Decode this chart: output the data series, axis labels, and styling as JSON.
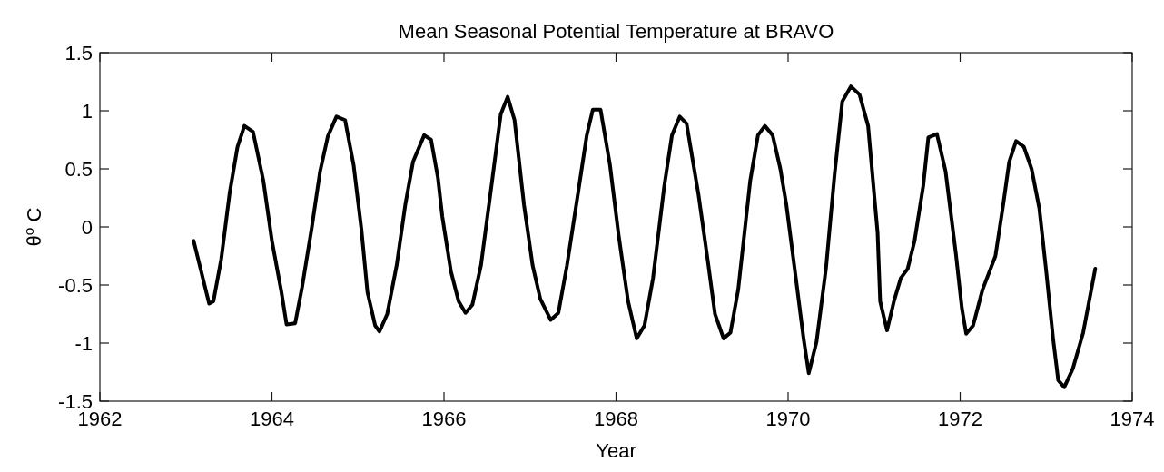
{
  "chart_data": {
    "type": "line",
    "title": "Mean Seasonal Potential Temperature at BRAVO",
    "xlabel": "Year",
    "ylabel": "θ$^{o}$ C",
    "xlim": [
      1962,
      1974
    ],
    "xticks": [
      1962,
      1964,
      1966,
      1968,
      1970,
      1972,
      1974
    ],
    "ylim": [
      -1.5,
      1.5
    ],
    "yticks": [
      -1.5,
      -1,
      -0.5,
      0,
      0.5,
      1,
      1.5
    ],
    "marker": "none",
    "line_style": "solid",
    "series": [
      {
        "color": "#000000",
        "x": [
          1963.09,
          1963.27,
          1963.32,
          1963.41,
          1963.51,
          1963.6,
          1963.68,
          1963.78,
          1963.9,
          1964.0,
          1964.11,
          1964.17,
          1964.27,
          1964.35,
          1964.46,
          1964.56,
          1964.65,
          1964.75,
          1964.85,
          1964.95,
          1965.04,
          1965.11,
          1965.2,
          1965.25,
          1965.34,
          1965.45,
          1965.55,
          1965.64,
          1965.77,
          1965.85,
          1965.93,
          1965.98,
          1966.08,
          1966.17,
          1966.25,
          1966.33,
          1966.43,
          1966.56,
          1966.66,
          1966.74,
          1966.82,
          1966.93,
          1967.03,
          1967.12,
          1967.24,
          1967.33,
          1967.43,
          1967.56,
          1967.66,
          1967.73,
          1967.82,
          1967.93,
          1968.03,
          1968.14,
          1968.24,
          1968.33,
          1968.43,
          1968.56,
          1968.65,
          1968.74,
          1968.82,
          1968.96,
          1969.07,
          1969.15,
          1969.25,
          1969.33,
          1969.42,
          1969.56,
          1969.65,
          1969.73,
          1969.82,
          1969.91,
          1969.98,
          1970.09,
          1970.18,
          1970.24,
          1970.33,
          1970.44,
          1970.54,
          1970.63,
          1970.73,
          1970.83,
          1970.93,
          1971.04,
          1971.07,
          1971.15,
          1971.23,
          1971.31,
          1971.39,
          1971.47,
          1971.57,
          1971.63,
          1971.73,
          1971.83,
          1971.95,
          1972.02,
          1972.07,
          1972.15,
          1972.26,
          1972.41,
          1972.5,
          1972.57,
          1972.65,
          1972.74,
          1972.83,
          1972.92,
          1973.0,
          1973.08,
          1973.14,
          1973.21,
          1973.31,
          1973.43,
          1973.57
        ],
        "values": [
          -0.12,
          -0.66,
          -0.64,
          -0.28,
          0.3,
          0.69,
          0.87,
          0.82,
          0.4,
          -0.12,
          -0.56,
          -0.84,
          -0.83,
          -0.52,
          -0.02,
          0.48,
          0.78,
          0.95,
          0.92,
          0.53,
          -0.02,
          -0.56,
          -0.85,
          -0.9,
          -0.75,
          -0.33,
          0.19,
          0.56,
          0.79,
          0.75,
          0.42,
          0.09,
          -0.38,
          -0.64,
          -0.74,
          -0.67,
          -0.33,
          0.4,
          0.97,
          1.12,
          0.92,
          0.19,
          -0.33,
          -0.62,
          -0.8,
          -0.74,
          -0.33,
          0.3,
          0.79,
          1.01,
          1.01,
          0.53,
          -0.07,
          -0.64,
          -0.96,
          -0.85,
          -0.44,
          0.35,
          0.79,
          0.95,
          0.89,
          0.27,
          -0.31,
          -0.75,
          -0.96,
          -0.91,
          -0.54,
          0.4,
          0.79,
          0.87,
          0.79,
          0.5,
          0.19,
          -0.44,
          -0.96,
          -1.26,
          -0.99,
          -0.36,
          0.45,
          1.08,
          1.21,
          1.14,
          0.87,
          -0.05,
          -0.64,
          -0.89,
          -0.64,
          -0.44,
          -0.36,
          -0.12,
          0.35,
          0.77,
          0.8,
          0.48,
          -0.23,
          -0.7,
          -0.92,
          -0.85,
          -0.54,
          -0.25,
          0.19,
          0.56,
          0.74,
          0.69,
          0.5,
          0.16,
          -0.38,
          -0.96,
          -1.32,
          -1.38,
          -1.22,
          -0.91,
          -0.36
        ]
      }
    ]
  }
}
